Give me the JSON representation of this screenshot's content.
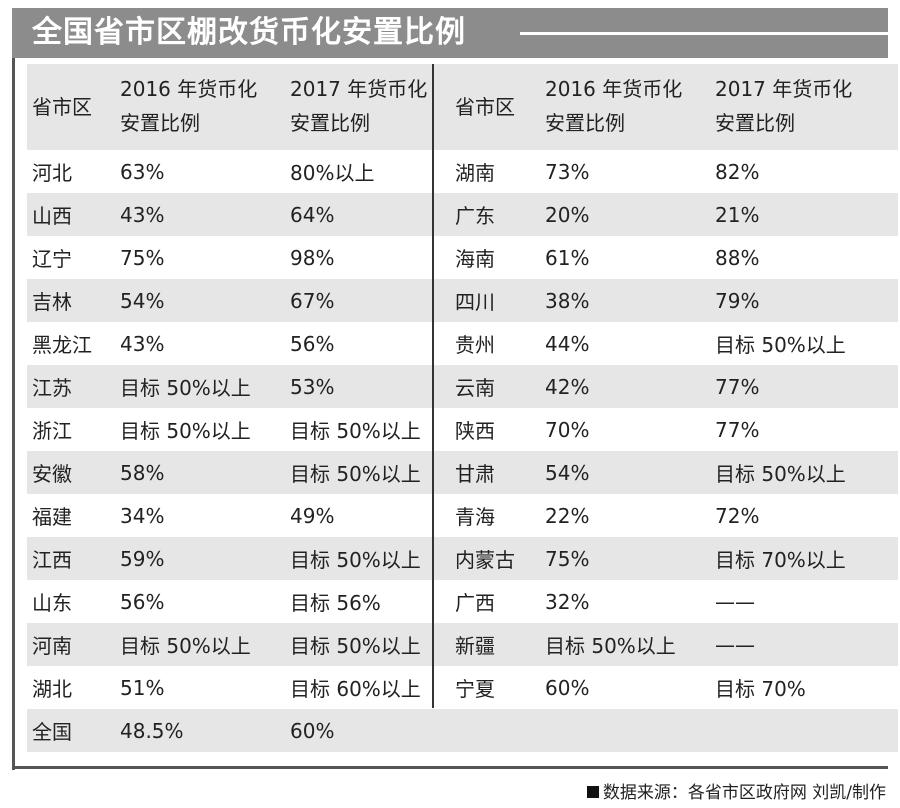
{
  "title": "全国省市区棚改货币化安置比例",
  "headers": {
    "region": "省市区",
    "y2016_line1": "2016 年货币化",
    "y2016_line2": "安置比例",
    "y2017_line1": "2017 年货币化",
    "y2017_line2": "安置比例"
  },
  "rows": [
    {
      "r1": "河北",
      "a1": "63%",
      "b1": "80%以上",
      "r2": "湖南",
      "a2": "73%",
      "b2": "82%"
    },
    {
      "r1": "山西",
      "a1": "43%",
      "b1": "64%",
      "r2": "广东",
      "a2": "20%",
      "b2": "21%"
    },
    {
      "r1": "辽宁",
      "a1": "75%",
      "b1": "98%",
      "r2": "海南",
      "a2": "61%",
      "b2": "88%"
    },
    {
      "r1": "吉林",
      "a1": "54%",
      "b1": "67%",
      "r2": "四川",
      "a2": "38%",
      "b2": "79%"
    },
    {
      "r1": "黑龙江",
      "a1": "43%",
      "b1": "56%",
      "r2": "贵州",
      "a2": "44%",
      "b2": "目标 50%以上"
    },
    {
      "r1": "江苏",
      "a1": "目标 50%以上",
      "b1": "53%",
      "r2": "云南",
      "a2": "42%",
      "b2": "77%"
    },
    {
      "r1": "浙江",
      "a1": "目标 50%以上",
      "b1": "目标 50%以上",
      "r2": "陕西",
      "a2": "70%",
      "b2": "77%"
    },
    {
      "r1": "安徽",
      "a1": "58%",
      "b1": "目标 50%以上",
      "r2": "甘肃",
      "a2": "54%",
      "b2": "目标 50%以上"
    },
    {
      "r1": "福建",
      "a1": "34%",
      "b1": "49%",
      "r2": "青海",
      "a2": "22%",
      "b2": "72%"
    },
    {
      "r1": "江西",
      "a1": "59%",
      "b1": "目标 50%以上",
      "r2": "内蒙古",
      "a2": "75%",
      "b2": "目标 70%以上"
    },
    {
      "r1": "山东",
      "a1": "56%",
      "b1": "目标 56%",
      "r2": "广西",
      "a2": "32%",
      "b2": "——"
    },
    {
      "r1": "河南",
      "a1": "目标 50%以上",
      "b1": "目标 50%以上",
      "r2": "新疆",
      "a2": "目标 50%以上",
      "b2": "——"
    },
    {
      "r1": "湖北",
      "a1": "51%",
      "b1": "目标 60%以上",
      "r2": "宁夏",
      "a2": "60%",
      "b2": "目标 70%"
    },
    {
      "r1": "全国",
      "a1": "48.5%",
      "b1": "60%",
      "r2": "",
      "a2": "",
      "b2": ""
    }
  ],
  "source": "数据来源：各省市区政府网 刘凯/制作",
  "colors": {
    "title_bg": "#8c8c8c",
    "row_shade": "#e6e6e6"
  }
}
